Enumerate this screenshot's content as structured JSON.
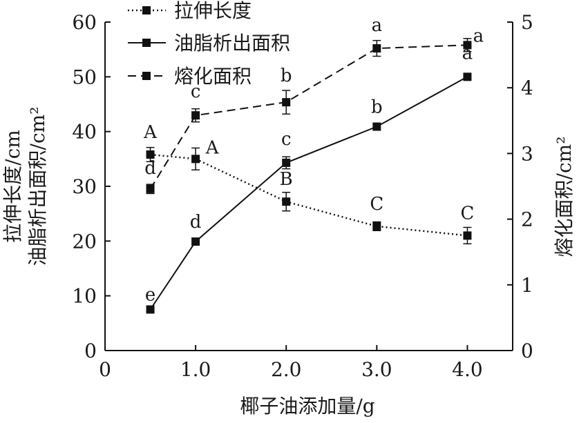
{
  "chart_data": {
    "type": "line",
    "title": "",
    "xlabel": "椰子油添加量/g",
    "ylabel_left_line1": "拉伸长度/cm",
    "ylabel_left_line2": "油脂析出面积/cm²",
    "ylabel_right": "熔化面积/cm²",
    "x_ticks": [
      "0",
      "1.0",
      "2.0",
      "3.0",
      "4.0"
    ],
    "x_tick_values": [
      0,
      1,
      2,
      3,
      4
    ],
    "xlim": [
      0,
      4.5
    ],
    "y_left_ticks": [
      "0",
      "10",
      "20",
      "30",
      "40",
      "50",
      "60"
    ],
    "y_left_tick_values": [
      0,
      10,
      20,
      30,
      40,
      50,
      60
    ],
    "ylim_left": [
      0,
      60
    ],
    "y_right_ticks": [
      "0",
      "1",
      "2",
      "3",
      "4",
      "5"
    ],
    "y_right_tick_values": [
      0,
      1,
      2,
      3,
      4,
      5
    ],
    "ylim_right": [
      0,
      5
    ],
    "legend_position": "top-left",
    "grid": false,
    "series": [
      {
        "name": "拉伸长度",
        "axis": "left",
        "style": "dotted",
        "x": [
          0.5,
          1.0,
          2.0,
          3.0,
          4.0
        ],
        "y": [
          35.8,
          35.0,
          27.2,
          22.7,
          21.0
        ],
        "err": [
          1.3,
          2.0,
          1.7,
          0.8,
          1.5
        ],
        "labels": [
          "A",
          "A",
          "B",
          "C",
          "C"
        ]
      },
      {
        "name": "油脂析出面积",
        "axis": "left",
        "style": "solid",
        "x": [
          0.5,
          1.0,
          2.0,
          3.0,
          4.0
        ],
        "y": [
          7.5,
          19.9,
          34.3,
          40.9,
          50.0
        ],
        "err": [
          0.0,
          0.0,
          1.1,
          0.0,
          0.0
        ],
        "labels": [
          "e",
          "d",
          "c",
          "b",
          "a"
        ]
      },
      {
        "name": "熔化面积",
        "axis": "right",
        "style": "dashed",
        "x": [
          0.5,
          1.0,
          2.0,
          3.0,
          4.0
        ],
        "y": [
          2.46,
          3.58,
          3.78,
          4.6,
          4.65
        ],
        "err": [
          0.07,
          0.1,
          0.18,
          0.12,
          0.1
        ],
        "labels": [
          "d",
          "c",
          "b",
          "a",
          "a"
        ]
      }
    ]
  }
}
